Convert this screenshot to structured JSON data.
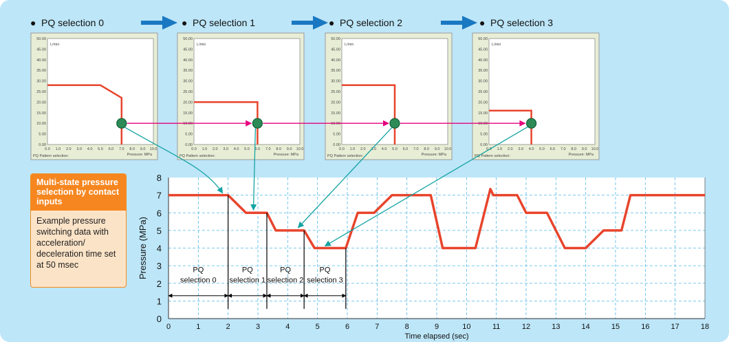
{
  "header": {
    "steps": [
      "PQ selection 0",
      "PQ selection 1",
      "PQ selection 2",
      "PQ selection 3"
    ],
    "bullet": "●"
  },
  "callout": {
    "title": "Multi-state pressure selection by contact inputs",
    "body": "Example pressure switching data with acceleration/ deceleration time set at 50 msec"
  },
  "pq_panels": {
    "y_unit": "L/min",
    "x_unit": "Pressure: MPa",
    "corner_label": "PQ Pattern selection:",
    "y_ticks": [
      "50.00",
      "45.00",
      "40.00",
      "35.00",
      "30.00",
      "25.00",
      "20.00",
      "15.00",
      "10.00",
      "5.00",
      "0.00"
    ],
    "x_ticks": [
      "0.0",
      "1.0",
      "2.0",
      "3.0",
      "4.0",
      "5.0",
      "6.0",
      "7.0",
      "8.0",
      "9.0",
      "10.0"
    ],
    "limits": [
      {
        "flow": 28,
        "pressure": 7,
        "flow_at_pressure_limit": 22
      },
      {
        "flow": 20,
        "pressure": 6
      },
      {
        "flow": 28,
        "pressure": 5
      },
      {
        "flow": 16,
        "pressure": 4
      }
    ],
    "operating_point": {
      "flow": 10
    }
  },
  "colors": {
    "panel_bg": "#bde6f8",
    "curve": "#e8442c",
    "arrow_magenta": "#e6007e",
    "arrow_teal": "#15a3a3",
    "flow_arrow_blue": "#1a78c2",
    "grid": "#4fb8e8",
    "callout_orange": "#f6861f",
    "operating_point": "#2e8b57"
  },
  "chart_data": {
    "type": "line",
    "ylabel": "Pressure (MPa)",
    "xlabel": "Time elapsed (sec)",
    "xlim": [
      0,
      18
    ],
    "ylim": [
      0,
      8
    ],
    "x_ticks": [
      0,
      1,
      2,
      3,
      4,
      5,
      6,
      7,
      8,
      9,
      10,
      11,
      12,
      13,
      14,
      15,
      16,
      17,
      18
    ],
    "y_ticks": [
      0,
      1,
      2,
      3,
      4,
      5,
      6,
      7,
      8
    ],
    "grid": true,
    "series": [
      {
        "x": [
          0,
          2,
          2.6,
          3.3,
          3.6,
          4.55,
          4.9,
          5.95,
          6.35,
          6.9,
          7.5,
          8.8,
          9.2,
          10.3,
          10.8,
          10.9,
          11.0,
          11.7,
          12.0,
          12.7,
          13.3,
          14.0,
          14.6,
          15.2,
          15.5,
          18
        ],
        "y": [
          7,
          7,
          6,
          6,
          5,
          5,
          4,
          4,
          6,
          6,
          7,
          7,
          4,
          4,
          7.35,
          7,
          7,
          7,
          6,
          6,
          4,
          4,
          5,
          5,
          7,
          7
        ]
      }
    ],
    "annotations": [
      {
        "label": [
          "PQ",
          "selection 0"
        ],
        "from": 0,
        "to": 2
      },
      {
        "label": [
          "PQ",
          "selection 1"
        ],
        "from": 2,
        "to": 3.3
      },
      {
        "label": [
          "PQ",
          "selection 2"
        ],
        "from": 3.3,
        "to": 4.55
      },
      {
        "label": [
          "PQ",
          "selection 3"
        ],
        "from": 4.55,
        "to": 5.95
      }
    ]
  }
}
